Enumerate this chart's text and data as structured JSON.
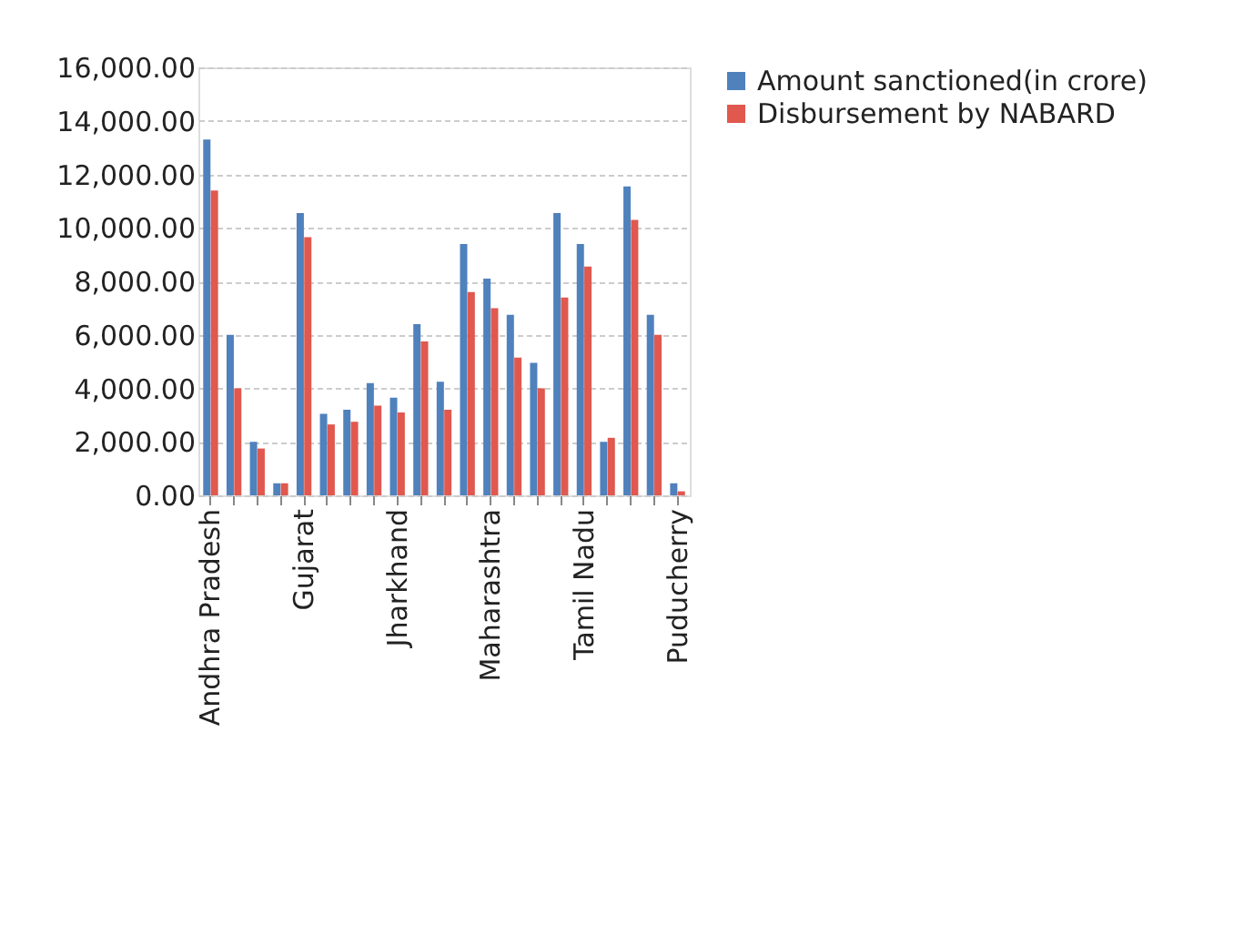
{
  "chart_data": {
    "type": "bar",
    "categories": [
      "Andhra Pradesh",
      null,
      null,
      null,
      "Gujarat",
      null,
      null,
      null,
      "Jharkhand",
      null,
      null,
      null,
      "Maharashtra",
      null,
      null,
      null,
      "Tamil Nadu",
      null,
      null,
      null,
      "Puducherry"
    ],
    "series": [
      {
        "name": "Amount sanctioned(in crore)",
        "color": "#4f81bd",
        "values": [
          13300,
          6000,
          2000,
          450,
          10550,
          3050,
          3200,
          4200,
          3650,
          6400,
          4250,
          9400,
          8100,
          6750,
          4950,
          10550,
          9400,
          2000,
          11550,
          6750,
          450
        ]
      },
      {
        "name": "Disbursement by NABARD",
        "color": "#e0584e",
        "values": [
          11400,
          4000,
          1750,
          450,
          9650,
          2650,
          2750,
          3350,
          3100,
          5750,
          3200,
          7600,
          7000,
          5150,
          4000,
          7400,
          8550,
          2150,
          10300,
          6000,
          150
        ]
      }
    ],
    "ylim": [
      0,
      16000
    ],
    "yticks": [
      {
        "value": 0,
        "label": "0.00"
      },
      {
        "value": 2000,
        "label": "2,000.00"
      },
      {
        "value": 4000,
        "label": "4,000.00"
      },
      {
        "value": 6000,
        "label": "6,000.00"
      },
      {
        "value": 8000,
        "label": "8,000.00"
      },
      {
        "value": 10000,
        "label": "10,000.00"
      },
      {
        "value": 12000,
        "label": "12,000.00"
      },
      {
        "value": 14000,
        "label": "14,000.00"
      },
      {
        "value": 16000,
        "label": "16,000.00"
      }
    ],
    "grid": "y",
    "legend": "right"
  }
}
